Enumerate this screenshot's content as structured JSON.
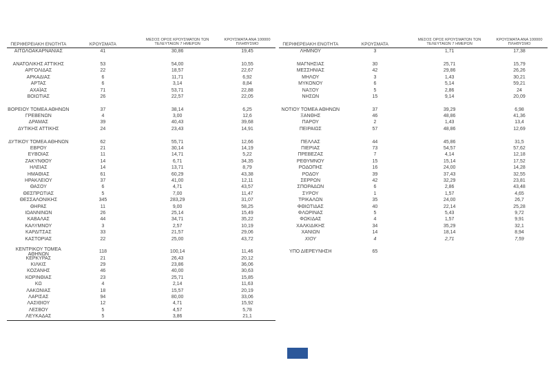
{
  "page": {
    "background": "#ffffff",
    "text_color": "#3f3f3f",
    "rule_color": "#262626",
    "blue_box_color": "#2b579a"
  },
  "columns": [
    "ΠΕΡΙΦΕΡΕΙΑΚΗ ΕΝΟΤΗΤΑ",
    "ΚΡΟΥΣΜΑΤΑ",
    "ΜΕΣΟΣ ΟΡΟΣ ΚΡΟΥΣΜΑΤΩΝ ΤΩΝ\nΤΕΛΕΥΤΑΙΩΝ 7 ΗΜΕΡΩΝ",
    "ΚΡΟΥΣΜΑΤΑ ΑΝΑ 100000\nΠΛΗΘΥΣΜΟ"
  ],
  "left_table": {
    "rows": [
      {
        "c": [
          "ΑΙΤΩΛΟΑΚΑΡΝΑΝΙΑΣ",
          "41",
          "30,86",
          "19,45"
        ]
      },
      {
        "blank": true
      },
      {
        "c": [
          "ΑΝΑΤΟΛΙΚΗΣ ΑΤΤΙΚΗΣ",
          "53",
          "54,00",
          "10,55"
        ]
      },
      {
        "c": [
          "ΑΡΓΟΛΙΔΑΣ",
          "22",
          "18,57",
          "22,67"
        ]
      },
      {
        "c": [
          "ΑΡΚΑΔΙΑΣ",
          "6",
          "11,71",
          "6,92"
        ]
      },
      {
        "c": [
          "ΑΡΤΑΣ",
          "6",
          "3,14",
          "8,84"
        ]
      },
      {
        "c": [
          "ΑΧΑΪΑΣ",
          "71",
          "53,71",
          "22,88"
        ]
      },
      {
        "c": [
          "ΒΟΙΩΤΙΑΣ",
          "26",
          "22,57",
          "22,05"
        ]
      },
      {
        "blank": true
      },
      {
        "c": [
          "ΒΟΡΕΙΟΥ ΤΟΜΕΑ ΑΘΗΝΩΝ",
          "37",
          "38,14",
          "6,25"
        ]
      },
      {
        "c": [
          "ΓΡΕΒΕΝΩΝ",
          "4",
          "3,00",
          "12,6"
        ]
      },
      {
        "c": [
          "ΔΡΑΜΑΣ",
          "39",
          "40,43",
          "39,68"
        ]
      },
      {
        "c": [
          "ΔΥΤΙΚΗΣ ΑΤΤΙΚΗΣ",
          "24",
          "23,43",
          "14,91"
        ]
      },
      {
        "blank": true
      },
      {
        "c": [
          "ΔΥΤΙΚΟΥ ΤΟΜΕΑ ΑΘΗΝΩΝ",
          "62",
          "55,71",
          "12,66"
        ]
      },
      {
        "c": [
          "ΕΒΡΟΥ",
          "21",
          "30,14",
          "14,19"
        ]
      },
      {
        "c": [
          "ΕΥΒΟΙΑΣ",
          "11",
          "14,71",
          "5,22"
        ]
      },
      {
        "c": [
          "ΖΑΚΥΝΘΟΥ",
          "14",
          "6,71",
          "34,35"
        ]
      },
      {
        "c": [
          "ΗΛΕΙΑΣ",
          "14",
          "13,71",
          "8,79"
        ]
      },
      {
        "c": [
          "ΗΜΑΘΙΑΣ",
          "61",
          "60,29",
          "43,38"
        ]
      },
      {
        "c": [
          "ΗΡΑΚΛΕΙΟΥ",
          "37",
          "41,00",
          "12,11"
        ]
      },
      {
        "c": [
          "ΘΑΣΟΥ",
          "6",
          "4,71",
          "43,57"
        ]
      },
      {
        "c": [
          "ΘΕΣΠΡΩΤΙΑΣ",
          "5",
          "7,00",
          "11,47"
        ]
      },
      {
        "c": [
          "ΘΕΣΣΑΛΟΝΙΚΗΣ",
          "345",
          "283,29",
          "31,07"
        ]
      },
      {
        "c": [
          "ΘΗΡΑΣ",
          "11",
          "9,00",
          "58,25"
        ]
      },
      {
        "c": [
          "ΙΩΑΝΝΙΝΩΝ",
          "26",
          "25,14",
          "15,49"
        ]
      },
      {
        "c": [
          "ΚΑΒΑΛΑΣ",
          "44",
          "34,71",
          "35,22"
        ]
      },
      {
        "c": [
          "ΚΑΛΥΜΝΟΥ",
          "3",
          "2,57",
          "10,19"
        ]
      },
      {
        "c": [
          "ΚΑΡΔΙΤΣΑΣ",
          "33",
          "21,57",
          "29,06"
        ]
      },
      {
        "c": [
          "ΚΑΣΤΟΡΙΑΣ",
          "22",
          "25,00",
          "43,72"
        ]
      },
      {
        "blank": true
      },
      {
        "c": [
          "ΚΕΝΤΡΙΚΟΥ ΤΟΜΕΑ ΑΘΗΝΩΝ",
          "118",
          "100,14",
          "11,46"
        ]
      },
      {
        "c": [
          "ΚΕΡΚΥΡΑΣ",
          "21",
          "26,43",
          "20,12"
        ]
      },
      {
        "c": [
          "ΚΙΛΚΙΣ",
          "29",
          "23,86",
          "36,06"
        ]
      },
      {
        "c": [
          "ΚΟΖΑΝΗΣ",
          "46",
          "40,00",
          "30,63"
        ]
      },
      {
        "c": [
          "ΚΟΡΙΝΘΙΑΣ",
          "23",
          "25,71",
          "15,85"
        ]
      },
      {
        "c": [
          "ΚΩ",
          "4",
          "2,14",
          "11,63"
        ]
      },
      {
        "c": [
          "ΛΑΚΩΝΙΑΣ",
          "18",
          "15,57",
          "20,19"
        ]
      },
      {
        "c": [
          "ΛΑΡΙΣΑΣ",
          "94",
          "80,00",
          "33,06"
        ]
      },
      {
        "c": [
          "ΛΑΣΙΘΙΟΥ",
          "12",
          "4,71",
          "15,92"
        ]
      },
      {
        "c": [
          "ΛΕΣΒΟΥ",
          "5",
          "4,57",
          "5,78"
        ]
      },
      {
        "c": [
          "ΛΕΥΚΑΔΑΣ",
          "5",
          "3,86",
          "21,1"
        ]
      }
    ]
  },
  "right_table": {
    "rows": [
      {
        "c": [
          "ΛΗΜΝΟΥ",
          "3",
          "1,71",
          "17,38"
        ]
      },
      {
        "blank": true
      },
      {
        "c": [
          "ΜΑΓΝΗΣΙΑΣ",
          "30",
          "25,71",
          "15,79"
        ]
      },
      {
        "c": [
          "ΜΕΣΣΗΝΙΑΣ",
          "42",
          "29,86",
          "26,26"
        ]
      },
      {
        "c": [
          "ΜΗΛΟΥ",
          "3",
          "1,43",
          "30,21"
        ]
      },
      {
        "c": [
          "ΜΥΚΟΝΟΥ",
          "6",
          "5,14",
          "59,21"
        ]
      },
      {
        "c": [
          "ΝΑΞΟΥ",
          "5",
          "2,86",
          "24"
        ]
      },
      {
        "c": [
          "ΝΗΣΩΝ",
          "15",
          "9,14",
          "20,09"
        ]
      },
      {
        "blank": true
      },
      {
        "c": [
          "ΝΟΤΙΟΥ ΤΟΜΕΑ ΑΘΗΝΩΝ",
          "37",
          "39,29",
          "6,98"
        ]
      },
      {
        "c": [
          "ΞΑΝΘΗΣ",
          "46",
          "48,86",
          "41,36"
        ]
      },
      {
        "c": [
          "ΠΑΡΟΥ",
          "2",
          "1,43",
          "13,4"
        ]
      },
      {
        "c": [
          "ΠΕΙΡΑΙΩΣ",
          "57",
          "48,86",
          "12,69"
        ]
      },
      {
        "blank": true
      },
      {
        "c": [
          "ΠΕΛΛΑΣ",
          "44",
          "45,86",
          "31,5"
        ]
      },
      {
        "c": [
          "ΠΙΕΡΙΑΣ",
          "73",
          "54,57",
          "57,62"
        ]
      },
      {
        "c": [
          "ΠΡΕΒΕΖΑΣ",
          "7",
          "4,14",
          "12,18"
        ]
      },
      {
        "c": [
          "ΡΕΘΥΜΝΟΥ",
          "15",
          "15,14",
          "17,52"
        ]
      },
      {
        "c": [
          "ΡΟΔΟΠΗΣ",
          "16",
          "24,00",
          "14,28"
        ]
      },
      {
        "c": [
          "ΡΟΔΟΥ",
          "39",
          "37,43",
          "32,55"
        ]
      },
      {
        "c": [
          "ΣΕΡΡΩΝ",
          "42",
          "32,29",
          "23,81"
        ]
      },
      {
        "c": [
          "ΣΠΟΡΑΔΩΝ",
          "6",
          "2,86",
          "43,48"
        ]
      },
      {
        "c": [
          "ΣΥΡΟΥ",
          "1",
          "1,57",
          "4,65"
        ]
      },
      {
        "c": [
          "ΤΡΙΚΑΛΩΝ",
          "35",
          "24,00",
          "26,7"
        ]
      },
      {
        "c": [
          "ΦΘΙΩΤΙΔΑΣ",
          "40",
          "22,14",
          "25,28"
        ]
      },
      {
        "c": [
          "ΦΛΩΡΙΝΑΣ",
          "5",
          "5,43",
          "9,72"
        ]
      },
      {
        "c": [
          "ΦΩΚΙΔΑΣ",
          "4",
          "1,57",
          "9,91"
        ]
      },
      {
        "c": [
          "ΧΑΛΚΙΔΙΚΗΣ",
          "34",
          "35,29",
          "32,1"
        ]
      },
      {
        "c": [
          "ΧΑΝΙΩΝ",
          "14",
          "18,14",
          "8,94"
        ]
      },
      {
        "c": [
          "ΧΙΟΥ",
          "4",
          "2,71",
          "7,59"
        ],
        "italic": true
      },
      {
        "blank": true
      },
      {
        "c": [
          "ΥΠΟ ΔΙΕΡΕΥΝΗΣΗ",
          "65",
          "",
          ""
        ]
      }
    ]
  }
}
